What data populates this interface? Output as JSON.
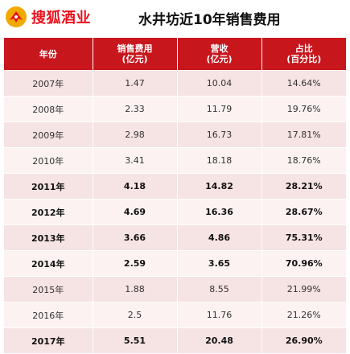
{
  "header": {
    "logo_text": "搜狐酒业",
    "title": "水井坊近10年销售费用"
  },
  "colors": {
    "brand_red": "#e8111d",
    "header_red": "#c8161d",
    "row_odd": "#f6e3e3",
    "row_even": "#fcf2f2"
  },
  "chart_data": {
    "type": "table",
    "title": "水井坊近10年销售费用",
    "columns": [
      {
        "line1": "年份",
        "line2": ""
      },
      {
        "line1": "销售费用",
        "line2": "(亿元)"
      },
      {
        "line1": "营收",
        "line2": "(亿元)"
      },
      {
        "line1": "占比",
        "line2": "(百分比)"
      }
    ],
    "rows": [
      {
        "year": "2007年",
        "sales_expense": "1.47",
        "revenue": "10.04",
        "ratio": "14.64%",
        "bold": false
      },
      {
        "year": "2008年",
        "sales_expense": "2.33",
        "revenue": "11.79",
        "ratio": "19.76%",
        "bold": false
      },
      {
        "year": "2009年",
        "sales_expense": "2.98",
        "revenue": "16.73",
        "ratio": "17.81%",
        "bold": false
      },
      {
        "year": "2010年",
        "sales_expense": "3.41",
        "revenue": "18.18",
        "ratio": "18.76%",
        "bold": false
      },
      {
        "year": "2011年",
        "sales_expense": "4.18",
        "revenue": "14.82",
        "ratio": "28.21%",
        "bold": true
      },
      {
        "year": "2012年",
        "sales_expense": "4.69",
        "revenue": "16.36",
        "ratio": "28.67%",
        "bold": true
      },
      {
        "year": "2013年",
        "sales_expense": "3.66",
        "revenue": "4.86",
        "ratio": "75.31%",
        "bold": true
      },
      {
        "year": "2014年",
        "sales_expense": "2.59",
        "revenue": "3.65",
        "ratio": "70.96%",
        "bold": true
      },
      {
        "year": "2015年",
        "sales_expense": "1.88",
        "revenue": "8.55",
        "ratio": "21.99%",
        "bold": false
      },
      {
        "year": "2016年",
        "sales_expense": "2.5",
        "revenue": "11.76",
        "ratio": "21.26%",
        "bold": false
      },
      {
        "year": "2017年",
        "sales_expense": "5.51",
        "revenue": "20.48",
        "ratio": "26.90%",
        "bold": true
      }
    ]
  }
}
